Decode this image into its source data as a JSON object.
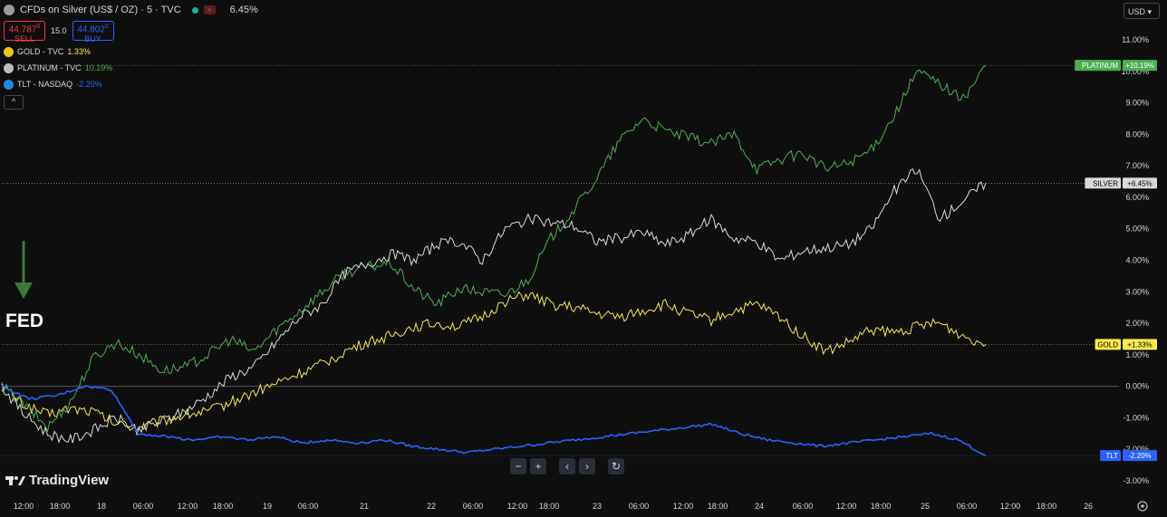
{
  "header": {
    "title": "CFDs on Silver (US$ / OZ) · 5 · TVC",
    "market_badge": "≈",
    "change": "6.45%",
    "sell_price": "44.787",
    "sell_sup": "0",
    "sell_label": "SELL",
    "spread": "15.0",
    "buy_price": "44.802",
    "buy_sup": "0",
    "buy_label": "BUY",
    "collapse": "^"
  },
  "currency": "USD",
  "annotation": {
    "text": "FED",
    "arrow_color": "#3d7a3a"
  },
  "brand": "TradingView",
  "nav": {
    "minus": "−",
    "plus": "+",
    "left": "‹",
    "right": "›",
    "reset": "↻"
  },
  "chart_data": {
    "type": "line",
    "x_ticks": [
      "12:00",
      "18:00",
      "18",
      "06:00",
      "12:00",
      "18:00",
      "19",
      "06:00",
      "21",
      "22",
      "06:00",
      "12:00",
      "18:00",
      "23",
      "06:00",
      "12:00",
      "18:00",
      "24",
      "06:00",
      "12:00",
      "18:00",
      "25",
      "06:00",
      "12:00",
      "18:00",
      "26"
    ],
    "y_ticks": [
      "11.00%",
      "10.00%",
      "9.00%",
      "8.00%",
      "7.00%",
      "6.00%",
      "5.00%",
      "4.00%",
      "3.00%",
      "2.00%",
      "1.00%",
      "0.00%",
      "-1.00%",
      "-2.00%",
      "-3.00%"
    ],
    "ylim": [
      -3.0,
      11.0
    ],
    "series": [
      {
        "name": "GOLD - TVC",
        "value": "1.33%",
        "tag": "GOLD",
        "tag_value": "+1.33%",
        "color": "#f7e94f",
        "tag_bg": "#f7e94f",
        "tag_fg": "#000000",
        "last": 1.33,
        "points": [
          0,
          -0.6,
          -0.9,
          -0.7,
          -0.8,
          -1.2,
          -1.3,
          -1.1,
          -0.9,
          -0.8,
          -0.5,
          -0.2,
          0.1,
          0.4,
          0.7,
          1.1,
          1.4,
          1.6,
          1.9,
          2.0,
          1.9,
          2.2,
          2.7,
          2.9,
          2.6,
          2.5,
          2.3,
          2.2,
          2.4,
          2.6,
          2.3,
          2.1,
          2.4,
          2.6,
          2.2,
          1.6,
          1.1,
          1.4,
          1.8,
          1.7,
          1.9,
          2.0,
          1.6,
          1.33
        ]
      },
      {
        "name": "PLATINUM - TVC",
        "value": "10.19%",
        "tag": "PLATINUM",
        "tag_value": "+10.19%",
        "color": "#4caf50",
        "tag_bg": "#4caf50",
        "tag_fg": "#ffffff",
        "last": 10.19,
        "points": [
          0,
          -0.6,
          -1.3,
          -0.5,
          0.9,
          1.4,
          1.0,
          0.5,
          0.6,
          1.0,
          1.5,
          1.1,
          1.8,
          2.4,
          3.0,
          3.6,
          3.8,
          3.9,
          3.1,
          2.6,
          3.1,
          3.0,
          2.9,
          3.4,
          4.7,
          5.6,
          6.6,
          7.8,
          8.5,
          8.1,
          7.9,
          7.7,
          8.0,
          6.9,
          7.2,
          7.4,
          6.9,
          7.1,
          7.5,
          8.6,
          10.0,
          9.6,
          9.1,
          10.19
        ]
      },
      {
        "name": "SILVER",
        "value": "6.45%",
        "tag": "SILVER",
        "tag_value": "+6.45%",
        "color": "#d9d9d9",
        "tag_bg": "#d9d9d9",
        "tag_fg": "#000000",
        "last": 6.45,
        "points": [
          0,
          -0.9,
          -1.5,
          -1.7,
          -1.4,
          -1.0,
          -1.4,
          -1.1,
          -0.8,
          -0.3,
          0.3,
          0.6,
          1.4,
          2.2,
          2.6,
          3.6,
          3.9,
          4.2,
          4.0,
          4.5,
          4.6,
          4.0,
          5.0,
          5.3,
          5.2,
          5.1,
          4.6,
          4.7,
          4.9,
          4.5,
          4.8,
          5.3,
          4.7,
          4.6,
          4.0,
          4.3,
          4.4,
          4.5,
          5.0,
          6.2,
          6.9,
          5.3,
          5.9,
          6.45
        ]
      },
      {
        "name": "TLT - NASDAQ",
        "value": "-2.20%",
        "tag": "TLT",
        "tag_value": "-2.20%",
        "color": "#2962ff",
        "tag_bg": "#2962ff",
        "tag_fg": "#ffffff",
        "last": -2.2,
        "points": [
          0,
          -0.4,
          -0.3,
          0.0,
          -0.1,
          -1.5,
          -1.6,
          -1.7,
          -1.6,
          -1.7,
          -1.6,
          -1.8,
          -1.7,
          -1.8,
          -1.7,
          -1.9,
          -2.0,
          -2.1,
          -2.0,
          -1.9,
          -1.8,
          -1.7,
          -1.6,
          -1.5,
          -1.4,
          -1.3,
          -1.2,
          -1.5,
          -1.7,
          -1.8,
          -1.9,
          -1.8,
          -1.7,
          -1.6,
          -1.5,
          -1.7,
          -2.2
        ]
      }
    ]
  }
}
